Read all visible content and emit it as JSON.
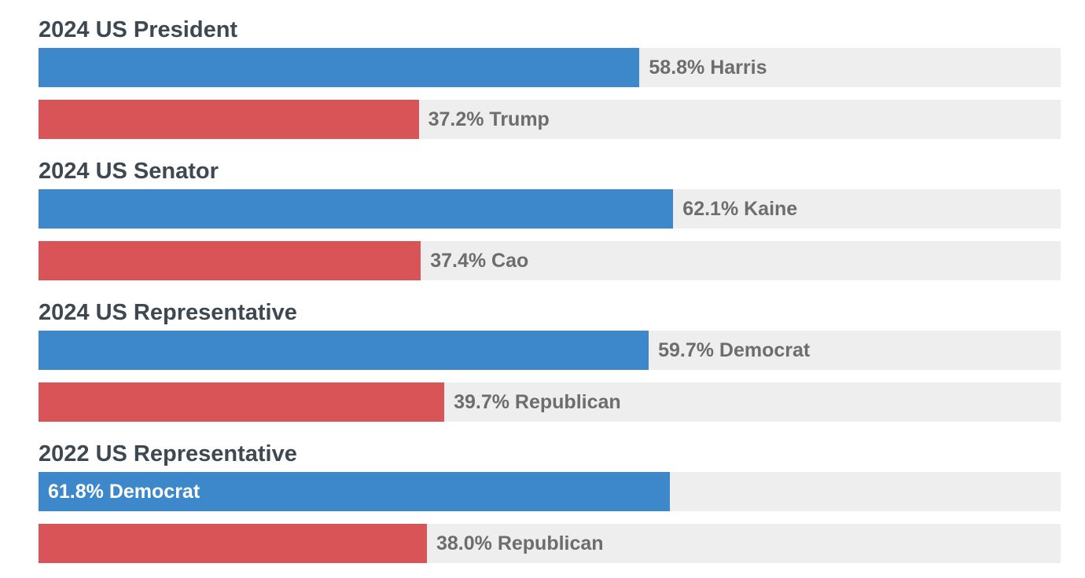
{
  "colors": {
    "democrat": "#3d87cb",
    "republican": "#d95457",
    "track": "#eeeeee",
    "title": "#3d4850",
    "label": "#6d6d6d"
  },
  "chart_data": {
    "type": "bar",
    "orientation": "horizontal",
    "xlim": [
      0,
      100
    ],
    "grid": false,
    "races": [
      {
        "title": "2024 US President",
        "bars": [
          {
            "party": "democrat",
            "value": 58.8,
            "label": "58.8% Harris"
          },
          {
            "party": "republican",
            "value": 37.2,
            "label": "37.2% Trump"
          }
        ]
      },
      {
        "title": "2024 US Senator",
        "bars": [
          {
            "party": "democrat",
            "value": 62.1,
            "label": "62.1% Kaine"
          },
          {
            "party": "republican",
            "value": 37.4,
            "label": "37.4% Cao"
          }
        ]
      },
      {
        "title": "2024 US Representative",
        "bars": [
          {
            "party": "democrat",
            "value": 59.7,
            "label": "59.7% Democrat"
          },
          {
            "party": "republican",
            "value": 39.7,
            "label": "39.7% Republican"
          }
        ]
      },
      {
        "title": "2022 US Representative",
        "bars": [
          {
            "party": "democrat",
            "value": 61.8,
            "label": "61.8% Democrat",
            "label_inside": true
          },
          {
            "party": "republican",
            "value": 38.0,
            "label": "38.0% Republican"
          }
        ]
      }
    ]
  }
}
